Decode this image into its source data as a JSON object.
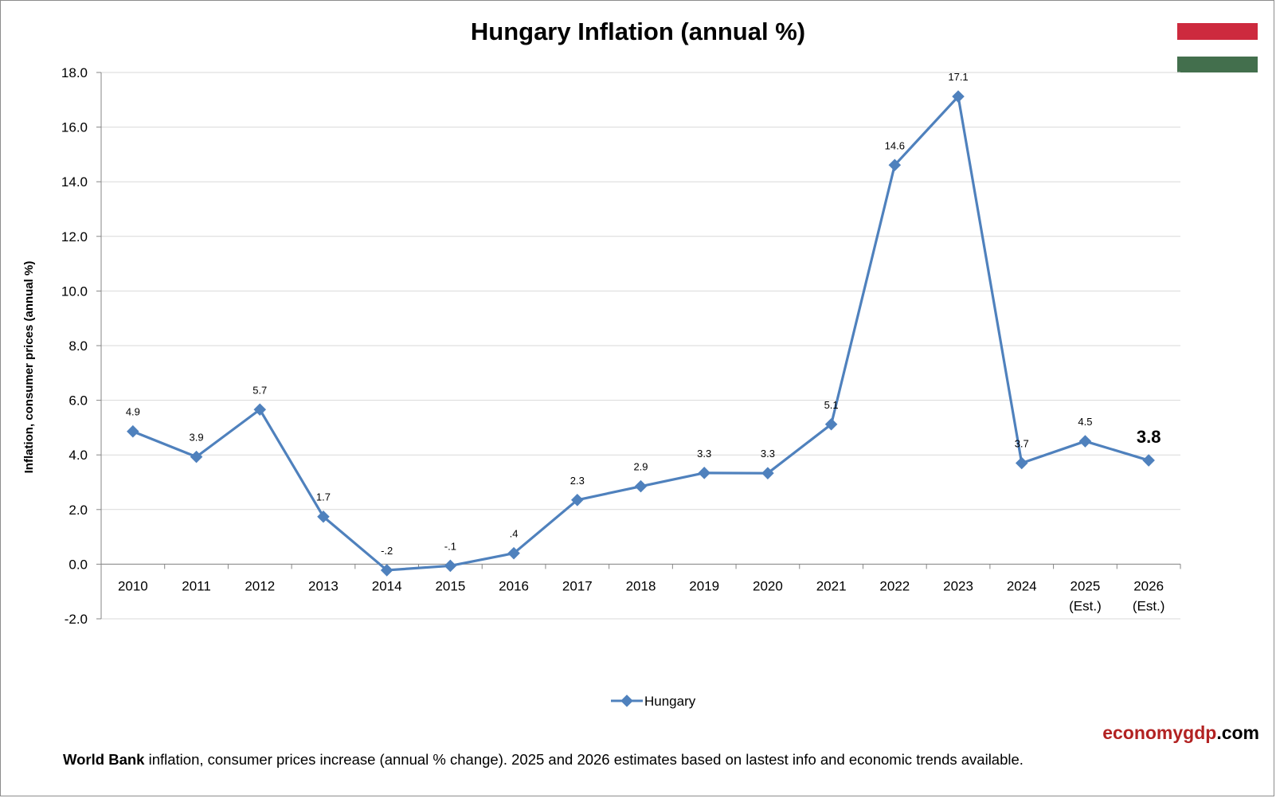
{
  "chart_data": {
    "type": "line",
    "title": "Hungary Inflation (annual %)",
    "ylabel": "Inflation, consumer prices (annual %)",
    "xlabel": "",
    "categories": [
      "2010",
      "2011",
      "2012",
      "2013",
      "2014",
      "2015",
      "2016",
      "2017",
      "2018",
      "2019",
      "2020",
      "2021",
      "2022",
      "2023",
      "2024",
      "2025",
      "2026"
    ],
    "category_sublabels": [
      "",
      "",
      "",
      "",
      "",
      "",
      "",
      "",
      "",
      "",
      "",
      "",
      "",
      "",
      "",
      "(Est.)",
      "(Est.)"
    ],
    "series": [
      {
        "name": "Hungary",
        "color": "#4f81bd",
        "values": [
          4.86,
          3.93,
          5.66,
          1.74,
          -0.22,
          -0.06,
          0.4,
          2.35,
          2.85,
          3.34,
          3.33,
          5.12,
          14.61,
          17.12,
          3.7,
          4.5,
          3.8
        ],
        "data_labels": [
          "4.9",
          "3.9",
          "5.7",
          "1.7",
          "-.2",
          "-.1",
          ".4",
          "2.3",
          "2.9",
          "3.3",
          "3.3",
          "5.1",
          "14.6",
          "17.1",
          "3.7",
          "4.5",
          "3.8"
        ]
      }
    ],
    "ylim": [
      -2.0,
      18.0
    ],
    "yticks": [
      "-2.0",
      "0.0",
      "2.0",
      "4.0",
      "6.0",
      "8.0",
      "10.0",
      "12.0",
      "14.0",
      "16.0",
      "18.0"
    ],
    "grid": true,
    "legend_position": "bottom-center",
    "highlight_last_label": true
  },
  "flag": {
    "colors": [
      "#cd2a3e",
      "#ffffff",
      "#436f4d"
    ]
  },
  "brand": {
    "part1": "economygdp",
    "part2": ".com"
  },
  "footnote": {
    "bold": "World Bank",
    "rest": " inflation, consumer prices increase (annual % change).  2025 and 2026 estimates based on lastest info and economic trends available."
  }
}
